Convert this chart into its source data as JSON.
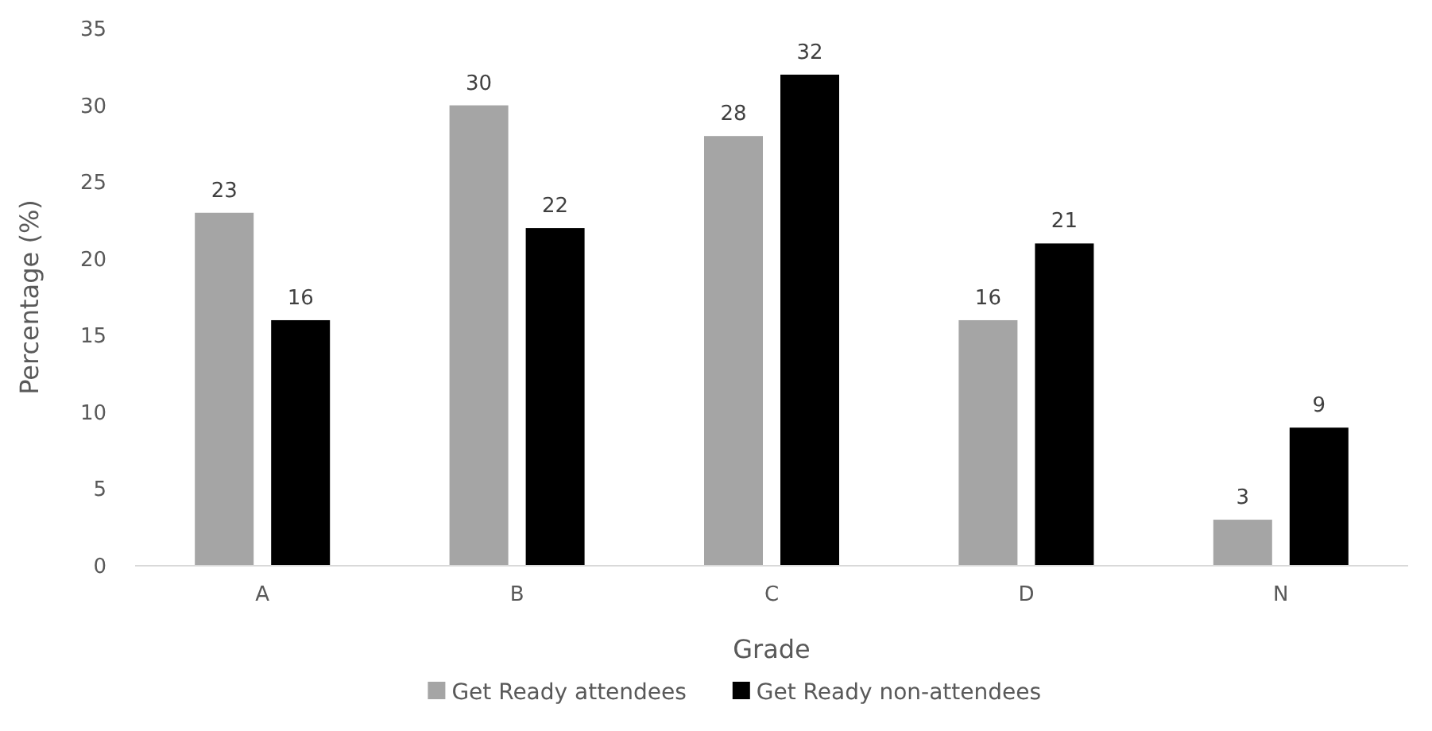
{
  "chart_data": {
    "type": "bar",
    "xlabel": "Grade",
    "ylabel": "Percentage (%)",
    "categories": [
      "A",
      "B",
      "C",
      "D",
      "N"
    ],
    "series": [
      {
        "name": "Get Ready attendees",
        "color": "#a5a5a5",
        "values": [
          23,
          30,
          28,
          16,
          3
        ]
      },
      {
        "name": "Get Ready non-attendees",
        "color": "#000000",
        "values": [
          16,
          22,
          32,
          21,
          9
        ]
      }
    ],
    "ylim": [
      0,
      35
    ],
    "yticks": [
      0,
      5,
      10,
      15,
      20,
      25,
      30,
      35
    ],
    "grid": false,
    "legend": "bottom",
    "data_labels": true
  }
}
